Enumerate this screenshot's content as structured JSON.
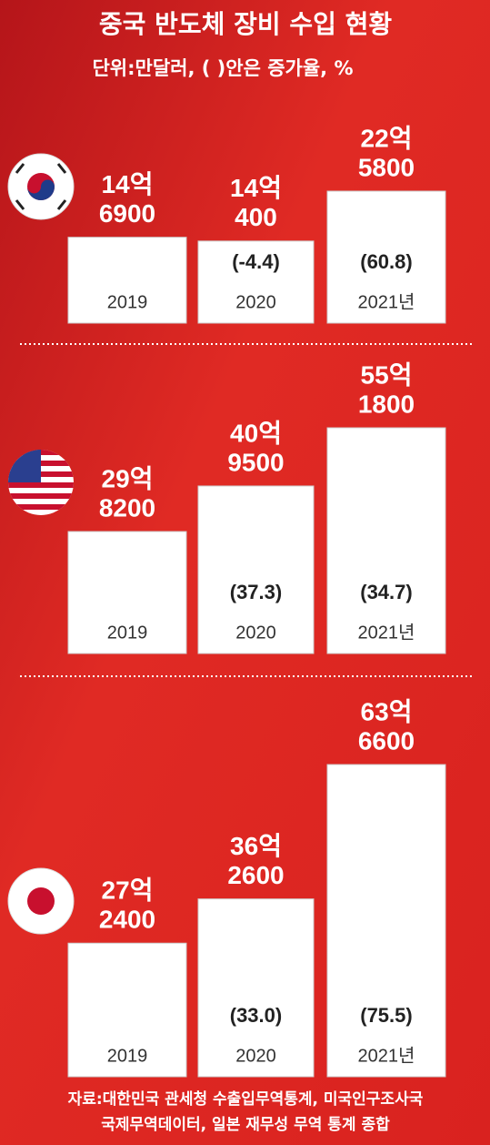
{
  "header": {
    "title": "중국 반도체 장비 수입 현황",
    "subtitle": "단위:만달러, ( )안은 증가율, %"
  },
  "chart_data": [
    {
      "type": "bar",
      "categories": [
        "2019",
        "2020",
        "2021년"
      ],
      "values": [
        146900,
        140400,
        225800
      ],
      "value_labels": [
        [
          "14억",
          "6900"
        ],
        [
          "14억",
          "400"
        ],
        [
          "22억",
          "5800"
        ]
      ],
      "change_labels": [
        null,
        "(-4.4)",
        "(60.8)"
      ],
      "color": "#ffffff"
    },
    {
      "type": "bar",
      "categories": [
        "2019",
        "2020",
        "2021년"
      ],
      "values": [
        298200,
        409500,
        551800
      ],
      "value_labels": [
        [
          "29억",
          "8200"
        ],
        [
          "40억",
          "9500"
        ],
        [
          "55억",
          "1800"
        ]
      ],
      "change_labels": [
        null,
        "(37.3)",
        "(34.7)"
      ],
      "color": "#ffffff"
    },
    {
      "type": "bar",
      "categories": [
        "2019",
        "2020",
        "2021년"
      ],
      "values": [
        272400,
        362600,
        636600
      ],
      "value_labels": [
        [
          "27억",
          "2400"
        ],
        [
          "36억",
          "2600"
        ],
        [
          "63억",
          "6600"
        ]
      ],
      "change_labels": [
        null,
        "(33.0)",
        "(75.5)"
      ],
      "color": "#ffffff"
    }
  ],
  "source": [
    "자료:대한민국 관세청 수출입무역통계, 미국인구조사국",
    "국제무역데이터, 일본 재무성 무역 통계 종합"
  ]
}
